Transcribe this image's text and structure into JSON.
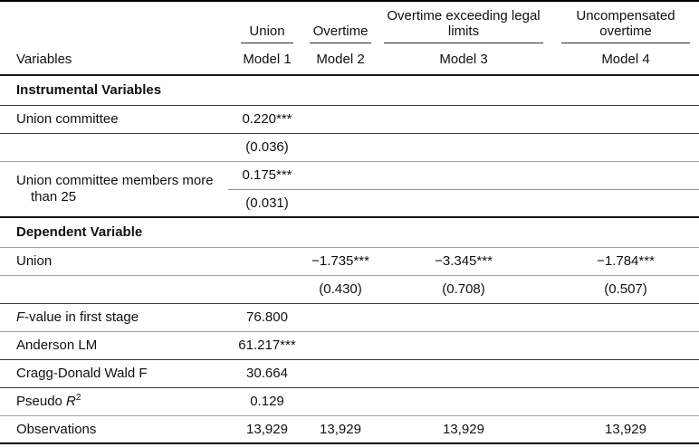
{
  "table": {
    "header": {
      "variables_label": "Variables",
      "groups": [
        {
          "label": "Union",
          "model": "Model 1"
        },
        {
          "label": "Overtime",
          "model": "Model 2"
        },
        {
          "label": "Overtime exceeding legal limits",
          "model": "Model 3"
        },
        {
          "label": "Uncompensated overtime",
          "model": "Model 4"
        }
      ]
    },
    "sections": {
      "instrumental": "Instrumental Variables",
      "dependent": "Dependent Variable"
    },
    "rows": {
      "union_committee": {
        "label": "Union committee",
        "m1": "0.220***",
        "se_m1": "(0.036)"
      },
      "union_committee_25": {
        "label_line1": "Union committee members more",
        "label_line2": "than 25",
        "m1": "0.175***",
        "se_m1": "(0.031)"
      },
      "union_dependent": {
        "label": "Union",
        "m2": "−1.735***",
        "m3": "−3.345***",
        "m4": "−1.784***",
        "se_m2": "(0.430)",
        "se_m3": "(0.708)",
        "se_m4": "(0.507)"
      },
      "f_value": {
        "label_italic": "F",
        "label_rest": "-value in first stage",
        "m1": "76.800"
      },
      "anderson_lm": {
        "label": "Anderson LM",
        "m1": "61.217***"
      },
      "cragg_donald": {
        "label": "Cragg-Donald Wald F",
        "m1": "30.664"
      },
      "pseudo_r2": {
        "label_prefix": "Pseudo ",
        "label_italic": "R",
        "label_sup": "2",
        "m1": "0.129"
      },
      "observations": {
        "label": "Observations",
        "m1": "13,929",
        "m2": "13,929",
        "m3": "13,929",
        "m4": "13,929"
      }
    }
  }
}
